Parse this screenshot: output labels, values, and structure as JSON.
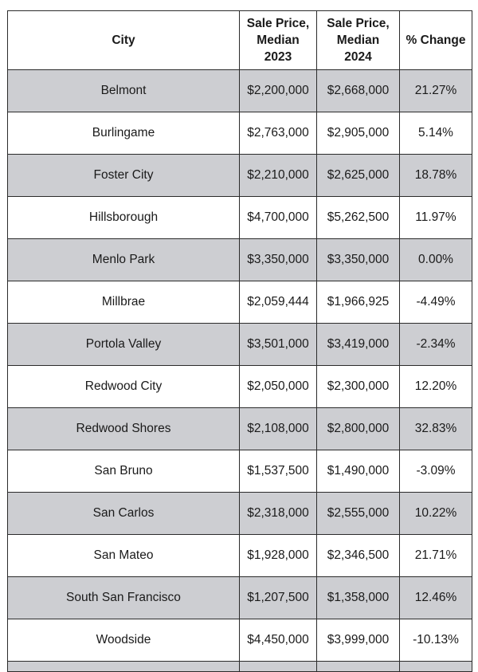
{
  "table": {
    "headers": [
      {
        "line1": "City",
        "line2": "",
        "line3": ""
      },
      {
        "line1": "Sale Price,",
        "line2": "Median",
        "line3": "2023"
      },
      {
        "line1": "Sale Price,",
        "line2": "Median",
        "line3": "2024"
      },
      {
        "line1": "% Change",
        "line2": "",
        "line3": ""
      }
    ],
    "rows": [
      {
        "city": "Belmont",
        "price_2023": "$2,200,000",
        "price_2024": "$2,668,000",
        "change": "21.27%"
      },
      {
        "city": "Burlingame",
        "price_2023": "$2,763,000",
        "price_2024": "$2,905,000",
        "change": "5.14%"
      },
      {
        "city": "Foster City",
        "price_2023": "$2,210,000",
        "price_2024": "$2,625,000",
        "change": "18.78%"
      },
      {
        "city": "Hillsborough",
        "price_2023": "$4,700,000",
        "price_2024": "$5,262,500",
        "change": "11.97%"
      },
      {
        "city": "Menlo Park",
        "price_2023": "$3,350,000",
        "price_2024": "$3,350,000",
        "change": "0.00%"
      },
      {
        "city": "Millbrae",
        "price_2023": "$2,059,444",
        "price_2024": "$1,966,925",
        "change": "-4.49%"
      },
      {
        "city": "Portola Valley",
        "price_2023": "$3,501,000",
        "price_2024": "$3,419,000",
        "change": "-2.34%"
      },
      {
        "city": "Redwood City",
        "price_2023": "$2,050,000",
        "price_2024": "$2,300,000",
        "change": "12.20%"
      },
      {
        "city": "Redwood Shores",
        "price_2023": "$2,108,000",
        "price_2024": "$2,800,000",
        "change": "32.83%"
      },
      {
        "city": "San Bruno",
        "price_2023": "$1,537,500",
        "price_2024": "$1,490,000",
        "change": "-3.09%"
      },
      {
        "city": "San Carlos",
        "price_2023": "$2,318,000",
        "price_2024": "$2,555,000",
        "change": "10.22%"
      },
      {
        "city": "San Mateo",
        "price_2023": "$1,928,000",
        "price_2024": "$2,346,500",
        "change": "21.71%"
      },
      {
        "city": "South San Francisco",
        "price_2023": "$1,207,500",
        "price_2024": "$1,358,000",
        "change": "12.46%"
      },
      {
        "city": "Woodside",
        "price_2023": "$4,450,000",
        "price_2024": "$3,999,000",
        "change": "-10.13%"
      }
    ],
    "row_shading": {
      "odd": "#cdced2",
      "even": "#ffffff"
    },
    "border_color": "#2b2b2b"
  }
}
